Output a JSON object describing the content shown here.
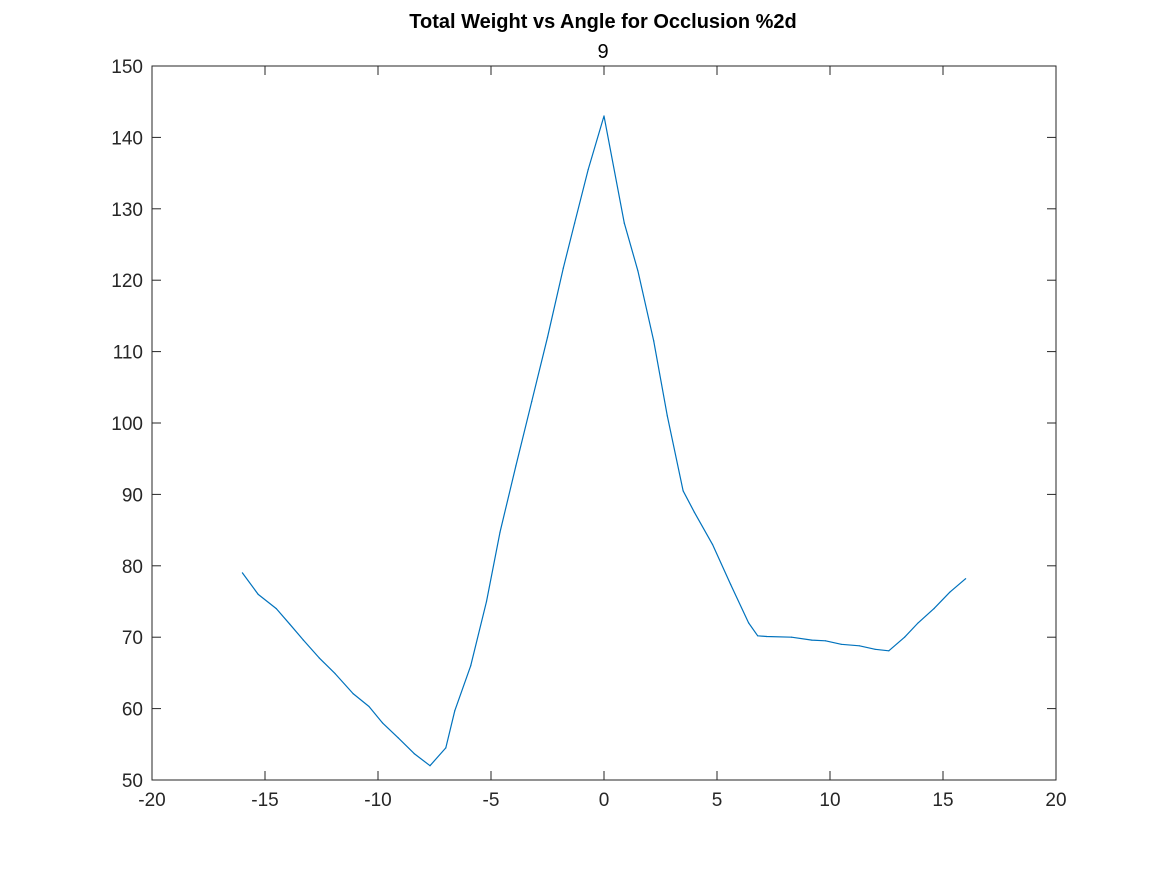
{
  "chart_data": {
    "type": "line",
    "title": "Total Weight vs Angle for Occlusion %2d",
    "subtitle": "9",
    "xlabel": "",
    "ylabel": "",
    "xlim": [
      -20,
      20
    ],
    "ylim": [
      50,
      150
    ],
    "xticks": [
      -20,
      -15,
      -10,
      -5,
      0,
      5,
      10,
      15,
      20
    ],
    "yticks": [
      50,
      60,
      70,
      80,
      90,
      100,
      110,
      120,
      130,
      140,
      150
    ],
    "grid": false,
    "legend": "none",
    "series_color": "#0072BD",
    "series": [
      {
        "x": [
          -16,
          -15.3,
          -14.5,
          -13.9,
          -13.3,
          -12.6,
          -11.9,
          -11.1,
          -10.4,
          -9.8,
          -9.1,
          -8.4,
          -7.7,
          -7.0,
          -6.6,
          -5.9,
          -5.2,
          -4.6,
          -3.9,
          -3.2,
          -2.5,
          -1.8,
          -1.3,
          -0.7,
          0.0,
          0.9,
          1.5,
          2.2,
          2.8,
          3.5,
          4.0,
          4.8,
          5.6,
          6.4,
          6.8,
          7.2,
          8.3,
          9.2,
          9.8,
          10.5,
          11.3,
          12.0,
          12.6,
          13.3,
          13.9,
          14.6,
          15.3,
          16.0
        ],
        "y": [
          79,
          76,
          74,
          71.8,
          69.6,
          67.1,
          64.9,
          62.1,
          60.3,
          58,
          55.9,
          53.7,
          52,
          54.5,
          59.7,
          66,
          75,
          84.7,
          94,
          103,
          112,
          121.7,
          128,
          135.5,
          143,
          128,
          121.3,
          111.5,
          101,
          90.5,
          87.5,
          83,
          77.4,
          72,
          70.2,
          70.1,
          70,
          69.6,
          69.5,
          69,
          68.8,
          68.3,
          68.1,
          70,
          72,
          74,
          76.3,
          78.2
        ]
      }
    ]
  }
}
